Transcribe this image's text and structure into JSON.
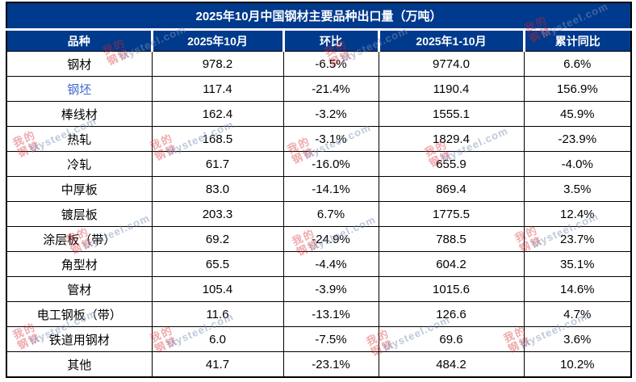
{
  "chart_data": {
    "type": "table",
    "title": "2025年10月中国钢材主要品种出口量（万吨）",
    "columns": [
      "品种",
      "2025年10月",
      "环比",
      "2025年1-10月",
      "累计同比"
    ],
    "rows": [
      {
        "cells": [
          "钢材",
          "978.2",
          "-6.5%",
          "9774.0",
          "6.6%"
        ],
        "link": false
      },
      {
        "cells": [
          "钢坯",
          "117.4",
          "-21.4%",
          "1190.4",
          "156.9%"
        ],
        "link": true
      },
      {
        "cells": [
          "棒线材",
          "162.4",
          "-3.2%",
          "1555.1",
          "45.9%"
        ],
        "link": false
      },
      {
        "cells": [
          "热轧",
          "168.5",
          "-3.1%",
          "1829.4",
          "-23.9%"
        ],
        "link": false
      },
      {
        "cells": [
          "冷轧",
          "61.7",
          "-16.0%",
          "655.9",
          "-4.0%"
        ],
        "link": false
      },
      {
        "cells": [
          "中厚板",
          "83.0",
          "-14.1%",
          "869.4",
          "3.5%"
        ],
        "link": false
      },
      {
        "cells": [
          "镀层板",
          "203.3",
          "6.7%",
          "1775.5",
          "12.4%"
        ],
        "link": false
      },
      {
        "cells": [
          "涂层板（带）",
          "69.2",
          "-24.9%",
          "788.5",
          "23.7%"
        ],
        "link": false
      },
      {
        "cells": [
          "角型材",
          "65.5",
          "-4.4%",
          "604.2",
          "35.1%"
        ],
        "link": false
      },
      {
        "cells": [
          "管材",
          "105.4",
          "-3.9%",
          "1015.6",
          "14.6%"
        ],
        "link": false
      },
      {
        "cells": [
          "电工钢板（带）",
          "11.6",
          "-13.1%",
          "126.6",
          "4.7%"
        ],
        "link": false
      },
      {
        "cells": [
          "铁道用钢材",
          "6.0",
          "-7.5%",
          "69.6",
          "3.6%"
        ],
        "link": false
      },
      {
        "cells": [
          "其他",
          "41.7",
          "-23.1%",
          "484.2",
          "10.2%"
        ],
        "link": false
      }
    ]
  },
  "watermark": {
    "logo_line1": "我的",
    "logo_line2": "钢铁",
    "text": "Mysteel.com"
  },
  "colors": {
    "header_bg": "#003a8c",
    "header_text": "#ffffff",
    "link_text": "#4168cc",
    "watermark_red": "#d62830",
    "watermark_gray_blue": "#7d91b9",
    "body_text": "#000000"
  }
}
